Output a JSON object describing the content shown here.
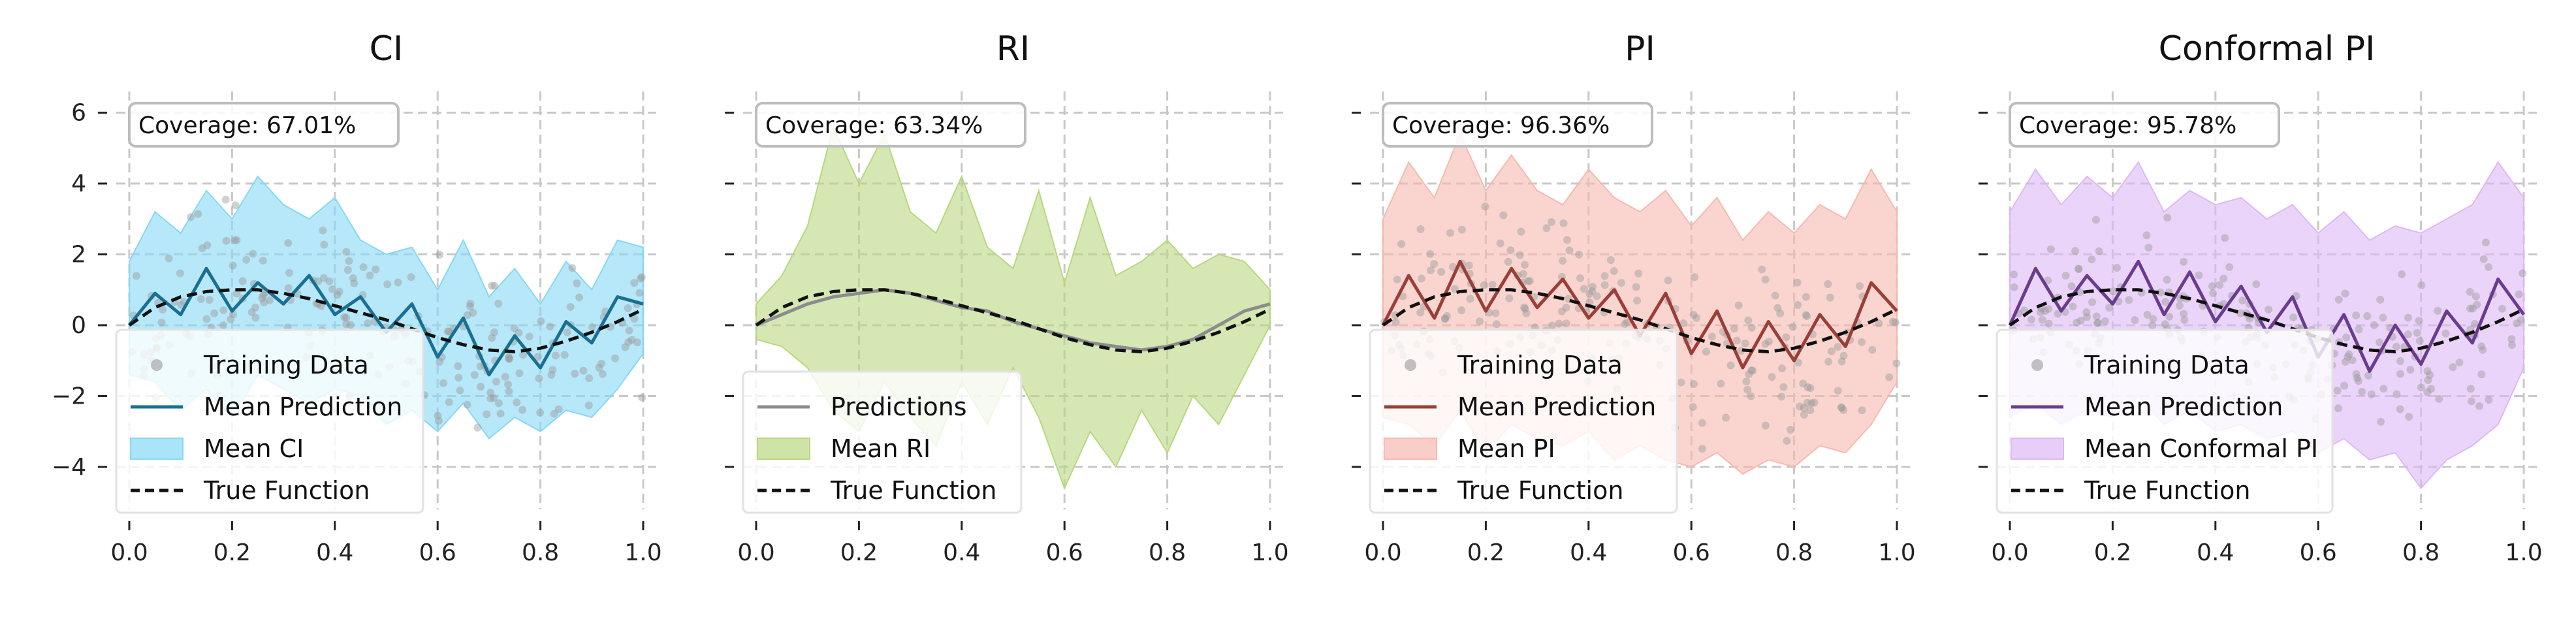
{
  "figure": {
    "background": "#ffffff",
    "grid_color": "#c8c8c8",
    "tick_color": "#222222"
  },
  "chart_data": [
    {
      "type": "line",
      "title": "CI",
      "xlim": [
        0,
        1
      ],
      "ylim": [
        -5.2,
        6.6
      ],
      "xticks": [
        "0.0",
        "0.2",
        "0.4",
        "0.6",
        "0.8",
        "1.0"
      ],
      "yticks": [
        "−4",
        "−2",
        "0",
        "2",
        "4",
        "6"
      ],
      "show_yticklabels": true,
      "grid": true,
      "coverage_label": "Coverage: 67.01%",
      "legend_position": "lower-left",
      "main_color": "#1a6f92",
      "band_color": "#86d8f5",
      "scatter_color": "#9a9a9a",
      "true_function_color": "#111111",
      "x": [
        0.0,
        0.05,
        0.1,
        0.15,
        0.2,
        0.25,
        0.3,
        0.35,
        0.4,
        0.45,
        0.5,
        0.55,
        0.6,
        0.65,
        0.7,
        0.75,
        0.8,
        0.85,
        0.9,
        0.95,
        1.0
      ],
      "true_function": [
        0.0,
        0.5,
        0.8,
        0.95,
        1.0,
        1.0,
        0.9,
        0.75,
        0.55,
        0.35,
        0.15,
        -0.1,
        -0.35,
        -0.55,
        -0.7,
        -0.75,
        -0.65,
        -0.45,
        -0.2,
        0.1,
        0.45
      ],
      "mean_prediction": [
        0.0,
        0.9,
        0.3,
        1.6,
        0.4,
        1.2,
        0.6,
        1.4,
        0.3,
        0.8,
        -0.2,
        0.6,
        -0.9,
        0.2,
        -1.4,
        -0.3,
        -1.2,
        0.1,
        -0.5,
        0.8,
        0.6
      ],
      "band_upper": [
        1.8,
        3.2,
        2.6,
        3.8,
        3.0,
        4.2,
        3.4,
        3.0,
        3.6,
        2.4,
        2.0,
        2.2,
        1.0,
        2.4,
        0.8,
        1.6,
        0.6,
        1.8,
        1.0,
        2.4,
        2.2
      ],
      "band_lower": [
        -1.4,
        -1.6,
        -2.4,
        -1.8,
        -2.6,
        -1.4,
        -1.8,
        -2.2,
        -1.8,
        -2.0,
        -2.8,
        -2.4,
        -3.0,
        -2.2,
        -3.2,
        -2.6,
        -3.0,
        -2.4,
        -2.6,
        -1.8,
        -0.8
      ],
      "legend": [
        {
          "label": "Training Data",
          "kind": "scatter"
        },
        {
          "label": "Mean Prediction",
          "kind": "line"
        },
        {
          "label": "Mean CI",
          "kind": "band"
        },
        {
          "label": "True Function",
          "kind": "dashed"
        }
      ]
    },
    {
      "type": "line",
      "title": "RI",
      "xlim": [
        0,
        1
      ],
      "ylim": [
        -5.2,
        6.6
      ],
      "xticks": [
        "0.0",
        "0.2",
        "0.4",
        "0.6",
        "0.8",
        "1.0"
      ],
      "yticks": [
        "−4",
        "−2",
        "0",
        "2",
        "4",
        "6"
      ],
      "show_yticklabels": false,
      "grid": true,
      "coverage_label": "Coverage: 63.34%",
      "legend_position": "lower-left",
      "main_color": "#8c8c8c",
      "band_color": "#b9d780",
      "scatter_color": "#9a9a9a",
      "true_function_color": "#111111",
      "x": [
        0.0,
        0.05,
        0.1,
        0.15,
        0.2,
        0.25,
        0.3,
        0.35,
        0.4,
        0.45,
        0.5,
        0.55,
        0.6,
        0.65,
        0.7,
        0.75,
        0.8,
        0.85,
        0.9,
        0.95,
        1.0
      ],
      "true_function": [
        0.0,
        0.5,
        0.8,
        0.95,
        1.0,
        1.0,
        0.9,
        0.75,
        0.55,
        0.35,
        0.15,
        -0.1,
        -0.35,
        -0.55,
        -0.7,
        -0.75,
        -0.65,
        -0.45,
        -0.2,
        0.1,
        0.45
      ],
      "mean_prediction": [
        0.0,
        0.3,
        0.6,
        0.8,
        0.9,
        1.0,
        0.9,
        0.7,
        0.5,
        0.4,
        0.1,
        -0.1,
        -0.3,
        -0.5,
        -0.6,
        -0.7,
        -0.6,
        -0.4,
        0.0,
        0.4,
        0.6
      ],
      "band_upper": [
        0.6,
        1.4,
        2.8,
        5.6,
        4.0,
        5.4,
        3.2,
        2.6,
        4.2,
        2.2,
        1.6,
        3.8,
        1.2,
        3.6,
        1.4,
        1.8,
        2.4,
        1.6,
        2.0,
        1.8,
        1.0
      ],
      "band_lower": [
        -0.4,
        -0.6,
        -1.2,
        -2.4,
        -3.0,
        -1.6,
        -2.6,
        -3.4,
        -1.6,
        -2.8,
        -1.2,
        -2.6,
        -4.6,
        -3.0,
        -4.0,
        -2.4,
        -3.6,
        -2.0,
        -2.8,
        -1.4,
        0.0
      ],
      "legend": [
        {
          "label": "Predictions",
          "kind": "line"
        },
        {
          "label": "Mean RI",
          "kind": "band"
        },
        {
          "label": "True Function",
          "kind": "dashed"
        }
      ]
    },
    {
      "type": "line",
      "title": "PI",
      "xlim": [
        0,
        1
      ],
      "ylim": [
        -5.2,
        6.6
      ],
      "xticks": [
        "0.0",
        "0.2",
        "0.4",
        "0.6",
        "0.8",
        "1.0"
      ],
      "yticks": [
        "−4",
        "−2",
        "0",
        "2",
        "4",
        "6"
      ],
      "show_yticklabels": false,
      "grid": true,
      "coverage_label": "Coverage: 96.36%",
      "legend_position": "lower-left",
      "main_color": "#9a3f38",
      "band_color": "#f7b9b0",
      "scatter_color": "#9a9a9a",
      "true_function_color": "#111111",
      "x": [
        0.0,
        0.05,
        0.1,
        0.15,
        0.2,
        0.25,
        0.3,
        0.35,
        0.4,
        0.45,
        0.5,
        0.55,
        0.6,
        0.65,
        0.7,
        0.75,
        0.8,
        0.85,
        0.9,
        0.95,
        1.0
      ],
      "true_function": [
        0.0,
        0.5,
        0.8,
        0.95,
        1.0,
        1.0,
        0.9,
        0.75,
        0.55,
        0.35,
        0.15,
        -0.1,
        -0.35,
        -0.55,
        -0.7,
        -0.75,
        -0.65,
        -0.45,
        -0.2,
        0.1,
        0.45
      ],
      "mean_prediction": [
        0.0,
        1.4,
        0.2,
        1.8,
        0.4,
        1.6,
        0.5,
        1.3,
        0.2,
        1.0,
        -0.3,
        0.9,
        -0.8,
        0.4,
        -1.2,
        0.1,
        -1.0,
        0.3,
        -0.6,
        1.2,
        0.4
      ],
      "band_upper": [
        3.0,
        4.6,
        3.6,
        5.4,
        3.8,
        4.8,
        3.8,
        3.4,
        4.4,
        3.6,
        3.2,
        3.8,
        2.8,
        3.6,
        2.4,
        3.2,
        2.6,
        3.4,
        3.0,
        4.4,
        3.2
      ],
      "band_lower": [
        -2.6,
        -2.8,
        -3.4,
        -2.4,
        -3.6,
        -2.8,
        -3.2,
        -3.4,
        -3.0,
        -3.8,
        -3.4,
        -3.8,
        -4.0,
        -3.6,
        -4.2,
        -3.8,
        -4.0,
        -3.4,
        -3.6,
        -2.8,
        -1.6
      ],
      "legend": [
        {
          "label": "Training Data",
          "kind": "scatter"
        },
        {
          "label": "Mean Prediction",
          "kind": "line"
        },
        {
          "label": "Mean PI",
          "kind": "band"
        },
        {
          "label": "True Function",
          "kind": "dashed"
        }
      ]
    },
    {
      "type": "line",
      "title": "Conformal PI",
      "xlim": [
        0,
        1
      ],
      "ylim": [
        -5.2,
        6.6
      ],
      "xticks": [
        "0.0",
        "0.2",
        "0.4",
        "0.6",
        "0.8",
        "1.0"
      ],
      "yticks": [
        "−4",
        "−2",
        "0",
        "2",
        "4",
        "6"
      ],
      "show_yticklabels": false,
      "grid": true,
      "coverage_label": "Coverage: 95.78%",
      "legend_position": "lower-left",
      "main_color": "#6a3c8e",
      "band_color": "#ddb8f5",
      "scatter_color": "#9a9a9a",
      "true_function_color": "#111111",
      "x": [
        0.0,
        0.05,
        0.1,
        0.15,
        0.2,
        0.25,
        0.3,
        0.35,
        0.4,
        0.45,
        0.5,
        0.55,
        0.6,
        0.65,
        0.7,
        0.75,
        0.8,
        0.85,
        0.9,
        0.95,
        1.0
      ],
      "true_function": [
        0.0,
        0.5,
        0.8,
        0.95,
        1.0,
        1.0,
        0.9,
        0.75,
        0.55,
        0.35,
        0.15,
        -0.1,
        -0.35,
        -0.55,
        -0.7,
        -0.75,
        -0.65,
        -0.45,
        -0.2,
        0.1,
        0.45
      ],
      "mean_prediction": [
        0.0,
        1.6,
        0.4,
        1.4,
        0.6,
        1.8,
        0.3,
        1.5,
        0.1,
        1.1,
        -0.2,
        0.8,
        -0.9,
        0.3,
        -1.3,
        0.0,
        -1.1,
        0.4,
        -0.5,
        1.3,
        0.3
      ],
      "band_upper": [
        3.2,
        4.4,
        3.4,
        4.2,
        3.6,
        4.6,
        3.2,
        3.8,
        3.4,
        3.6,
        3.0,
        3.4,
        2.6,
        3.2,
        2.4,
        2.8,
        2.6,
        3.0,
        3.4,
        4.6,
        3.6
      ],
      "band_lower": [
        -2.6,
        -2.2,
        -2.8,
        -2.4,
        -2.6,
        -2.0,
        -2.8,
        -2.4,
        -3.0,
        -2.8,
        -3.2,
        -3.0,
        -3.6,
        -3.2,
        -3.8,
        -3.6,
        -4.6,
        -3.8,
        -3.4,
        -2.8,
        -1.2
      ],
      "legend": [
        {
          "label": "Training Data",
          "kind": "scatter"
        },
        {
          "label": "Mean Prediction",
          "kind": "line"
        },
        {
          "label": "Mean Conformal PI",
          "kind": "band"
        },
        {
          "label": "True Function",
          "kind": "dashed"
        }
      ]
    }
  ]
}
